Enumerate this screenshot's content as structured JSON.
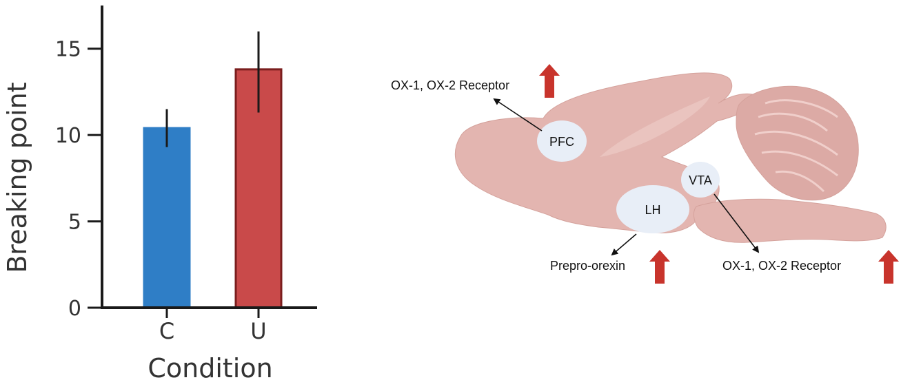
{
  "chart_data": {
    "type": "bar",
    "xlabel": "Condition",
    "ylabel": "Breaking point",
    "categories": [
      "C",
      "U"
    ],
    "values": [
      10.4,
      13.8
    ],
    "error_low": [
      9.3,
      11.3
    ],
    "error_high": [
      11.5,
      16.0
    ],
    "colors": [
      "#2f7ec6",
      "#c94a4a"
    ],
    "edge_colors": [
      "#2f7ec6",
      "#7a1e1e"
    ],
    "ylim": [
      0,
      17.5
    ],
    "yticks": [
      0,
      5,
      10,
      15
    ],
    "ytick_labels": [
      "0",
      "5",
      "10",
      "15"
    ],
    "grid": false
  },
  "diagram": {
    "regions": {
      "pfc": "PFC",
      "vta": "VTA",
      "lh": "LH"
    },
    "annotations": {
      "pfc_receptor": "OX-1, OX-2 Receptor",
      "lh_prepro": "Prepro-orexin",
      "vta_receptor": "OX-1, OX-2 Receptor"
    },
    "colors": {
      "brain_fill": "#e3b5b0",
      "brain_stroke": "#d4a19b",
      "cerebellum_fill": "#dcaaa5",
      "region_fill": "#e8eef7",
      "up_arrow": "#c8342c"
    },
    "icons": [
      "up-arrow-icon",
      "up-arrow-icon",
      "up-arrow-icon"
    ]
  }
}
